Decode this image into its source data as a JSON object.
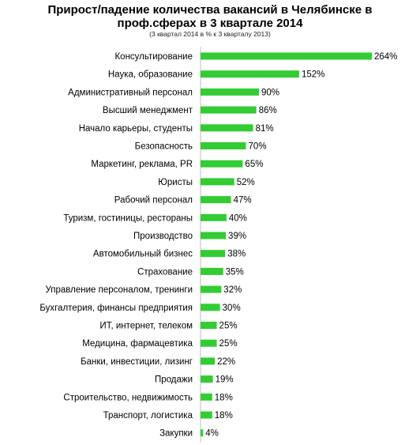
{
  "header": {
    "title_line1": "Прирост/падение количества вакансий в Челябинске в",
    "title_line2": "проф.сферах в 3 квартале 2014",
    "subtitle": "(3 квартал 2014  в % к 3 кварталу 2013)"
  },
  "chart_data": {
    "type": "bar",
    "orientation": "horizontal",
    "title": "Прирост/падение количества вакансий в Челябинске в проф.сферах в 3 квартале 2014",
    "subtitle": "(3 квартал 2014  в % к 3 кварталу 2013)",
    "xlabel": "",
    "ylabel": "",
    "xlim": [
      0,
      264
    ],
    "grid": false,
    "legend": "none",
    "bar_color": "#33CC33",
    "categories": [
      "Консультирование",
      "Наука, образование",
      "Административный персонал",
      "Высший менеджмент",
      "Начало карьеры, студенты",
      "Безопасность",
      "Маркетинг, реклама, PR",
      "Юристы",
      "Рабочий персонал",
      "Туризм,  гостиницы, рестораны",
      "Производство",
      "Автомобильный бизнес",
      "Страхование",
      "Управление персоналом, тренинги",
      "Бухгалтерия, финансы предприятия",
      "ИТ, интернет, телеком",
      "Медицина, фармацевтика",
      "Банки, инвестиции, лизинг",
      "Продажи",
      "Строительство, недвижимость",
      "Транспорт, логистика",
      "Закупки"
    ],
    "values": [
      264,
      152,
      90,
      86,
      81,
      70,
      65,
      52,
      47,
      40,
      39,
      38,
      35,
      32,
      30,
      25,
      25,
      22,
      19,
      18,
      18,
      4
    ],
    "value_labels": [
      "264%",
      "152%",
      "90%",
      "86%",
      "81%",
      "70%",
      "65%",
      "52%",
      "47%",
      "40%",
      "39%",
      "38%",
      "35%",
      "32%",
      "30%",
      "25%",
      "25%",
      "22%",
      "19%",
      "18%",
      "18%",
      "4%"
    ]
  }
}
